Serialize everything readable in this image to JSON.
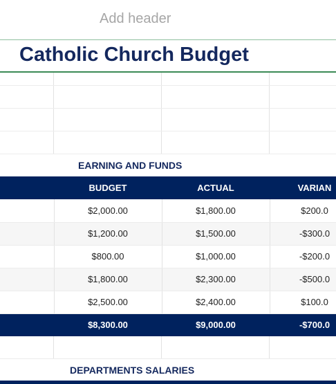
{
  "header": {
    "placeholder_text": "Add header"
  },
  "document": {
    "title": "Catholic Church Budget"
  },
  "earnings": {
    "section_title": "EARNING AND FUNDS",
    "columns": [
      "",
      "BUDGET",
      "ACTUAL",
      "VARIAN"
    ],
    "rows": [
      {
        "label": "",
        "budget": "$2,000.00",
        "actual": "$1,800.00",
        "variance": "$200.0"
      },
      {
        "label": "",
        "budget": "$1,200.00",
        "actual": "$1,500.00",
        "variance": "-$300.0"
      },
      {
        "label": "",
        "budget": "$800.00",
        "actual": "$1,000.00",
        "variance": "-$200.0"
      },
      {
        "label": "",
        "budget": "$1,800.00",
        "actual": "$2,300.00",
        "variance": "-$500.0"
      },
      {
        "label": "",
        "budget": "$2,500.00",
        "actual": "$2,400.00",
        "variance": "$100.0"
      }
    ],
    "total": {
      "label": "",
      "budget": "$8,300.00",
      "actual": "$9,000.00",
      "variance": "-$700.0"
    }
  },
  "salaries": {
    "section_title": "DEPARTMENTS SALARIES"
  },
  "colors": {
    "brand_navy": "#00225e",
    "title_navy": "#14285e",
    "accent_green": "#3a8a55",
    "placeholder_gray": "#a6a6a6"
  }
}
